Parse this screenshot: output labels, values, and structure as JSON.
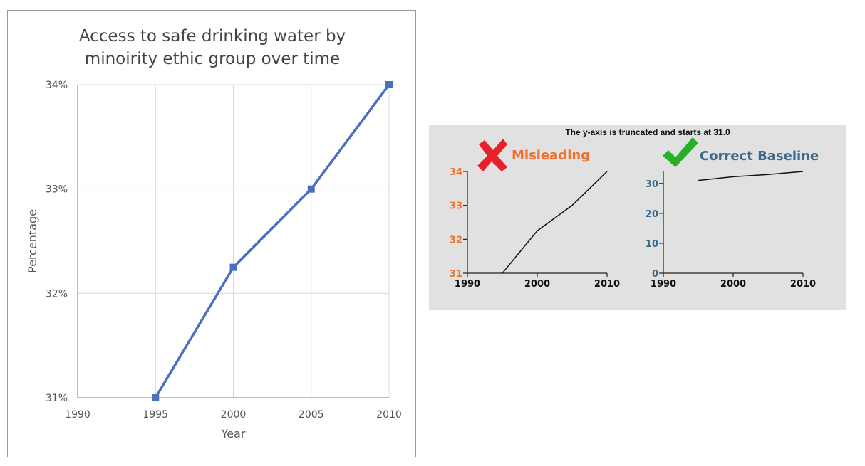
{
  "chart_data": [
    {
      "type": "line",
      "title_lines": [
        "Access to safe drinking water by",
        "minoirity ethic group over time"
      ],
      "xlabel": "Year",
      "ylabel": "Percentage",
      "x_ticks": [
        "1990",
        "1995",
        "2000",
        "2005",
        "2010"
      ],
      "y_ticks": [
        "31%",
        "32%",
        "33%",
        "34%"
      ],
      "xlim": [
        1990,
        2010
      ],
      "ylim": [
        31,
        34
      ],
      "grid": true,
      "series": [
        {
          "x": [
            1995,
            2000,
            2005,
            2010
          ],
          "values": [
            31,
            32.25,
            33,
            34
          ],
          "color": "#4a6fbf"
        }
      ]
    },
    {
      "type": "line",
      "heading": "Misleading",
      "heading_color": "#f07030",
      "marker_icon": "cross-icon",
      "marker_color": "#e8202a",
      "x_ticks": [
        "1990",
        "2000",
        "2010"
      ],
      "y_ticks": [
        "31",
        "32",
        "33",
        "34"
      ],
      "tick_color": "#f07030",
      "xlim": [
        1990,
        2010
      ],
      "ylim": [
        31,
        34
      ],
      "series": [
        {
          "x": [
            1995,
            2000,
            2005,
            2010
          ],
          "values": [
            31,
            32.25,
            33,
            34
          ],
          "color": "#111111"
        }
      ]
    },
    {
      "type": "line",
      "heading": "Correct Baseline",
      "heading_color": "#3e6a8a",
      "marker_icon": "check-icon",
      "marker_color": "#28b028",
      "x_ticks": [
        "1990",
        "2000",
        "2010"
      ],
      "y_ticks": [
        "0",
        "10",
        "20",
        "30"
      ],
      "tick_color": "#3e6a8a",
      "xlim": [
        1990,
        2010
      ],
      "ylim": [
        0,
        34
      ],
      "series": [
        {
          "x": [
            1995,
            2000,
            2005,
            2010
          ],
          "values": [
            31,
            32.25,
            33,
            34
          ],
          "color": "#111111"
        }
      ]
    }
  ],
  "panel": {
    "note": "The y-axis is truncated and starts at 31.0"
  }
}
